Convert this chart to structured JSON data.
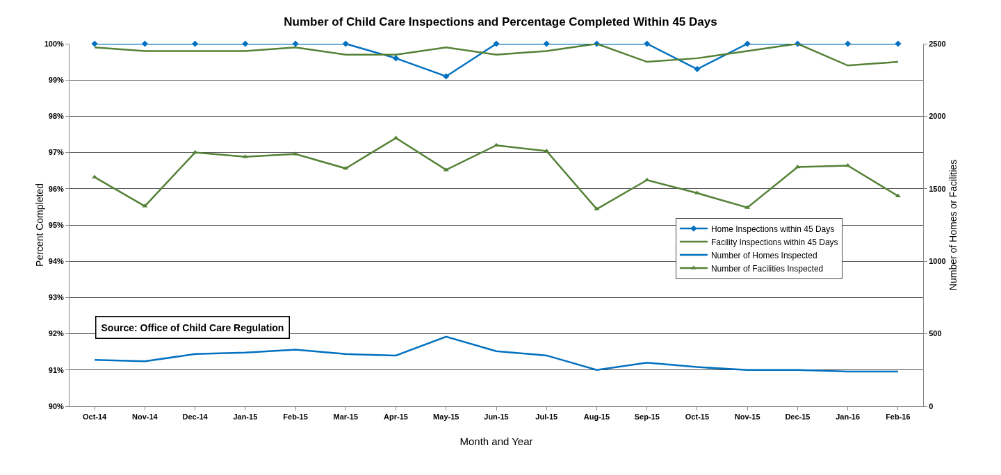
{
  "chart_data": {
    "type": "line",
    "title": "Number of Child Care Inspections and Percentage Completed Within 45 Days",
    "xlabel": "Month and Year",
    "ylabel": "Percent Completed",
    "y2label": "Number of Homes or Facilities",
    "categories": [
      "Oct-14",
      "Nov-14",
      "Dec-14",
      "Jan-15",
      "Feb-15",
      "Mar-15",
      "Apr-15",
      "May-15",
      "Jun-15",
      "Jul-15",
      "Aug-15",
      "Sep-15",
      "Oct-15",
      "Nov-15",
      "Dec-15",
      "Jan-16",
      "Feb-16"
    ],
    "series": [
      {
        "name": "Home Inspections within 45 Days",
        "color": "#0070c0",
        "marker": "diamond",
        "values": [
          100,
          100,
          100,
          100,
          100,
          100,
          99.6,
          99.1,
          100,
          100,
          100,
          100,
          99.3,
          100,
          100,
          100,
          100
        ]
      },
      {
        "name": "Facility Inspections within 45 Days",
        "color": "#538135",
        "marker": "none",
        "values": [
          99.9,
          99.8,
          99.8,
          99.8,
          99.9,
          99.7,
          99.7,
          99.9,
          99.7,
          99.8,
          100,
          99.5,
          99.6,
          99.8,
          100,
          99.4,
          99.5
        ]
      },
      {
        "name": "Number of Homes Inspected",
        "color": "#0070c0",
        "marker": "none",
        "axis": "y2",
        "values": [
          320,
          310,
          360,
          370,
          390,
          360,
          350,
          480,
          380,
          350,
          250,
          300,
          270,
          250,
          250,
          240,
          240
        ]
      },
      {
        "name": "Number of Facilities Inspected",
        "color": "#538135",
        "marker": "triangle",
        "axis": "y2",
        "values": [
          1580,
          1380,
          1750,
          1720,
          1740,
          1640,
          1850,
          1630,
          1800,
          1760,
          1360,
          1560,
          1470,
          1370,
          1650,
          1660,
          1450
        ]
      }
    ],
    "ylim": [
      90,
      100
    ],
    "yticks": [
      {
        "value": 90,
        "label": "90%"
      },
      {
        "value": 91,
        "label": "91%"
      },
      {
        "value": 92,
        "label": "92%"
      },
      {
        "value": 93,
        "label": "93%"
      },
      {
        "value": 94,
        "label": "94%"
      },
      {
        "value": 95,
        "label": "95%"
      },
      {
        "value": 96,
        "label": "96%"
      },
      {
        "value": 97,
        "label": "97%"
      },
      {
        "value": 98,
        "label": "98%"
      },
      {
        "value": 99,
        "label": "99%"
      },
      {
        "value": 100,
        "label": "100%"
      }
    ],
    "y2lim": [
      0,
      2500
    ],
    "y2ticks": [
      0,
      500,
      1000,
      1500,
      2000,
      2500
    ],
    "grid": "y",
    "legend": "right",
    "line_style": "solid",
    "annotations": [
      "Source: Office of Child Care Regulation"
    ]
  }
}
